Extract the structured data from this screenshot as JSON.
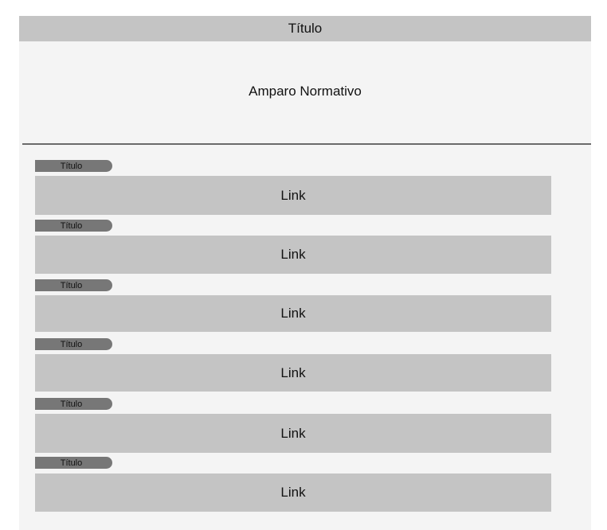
{
  "header": {
    "title": "Título",
    "subtitle": "Amparo Normativo"
  },
  "items": [
    {
      "tag": "Título",
      "link": "Link"
    },
    {
      "tag": "Título",
      "link": "Link"
    },
    {
      "tag": "Título",
      "link": "Link"
    },
    {
      "tag": "Título",
      "link": "Link"
    },
    {
      "tag": "Título",
      "link": "Link"
    },
    {
      "tag": "Título",
      "link": "Link"
    }
  ]
}
